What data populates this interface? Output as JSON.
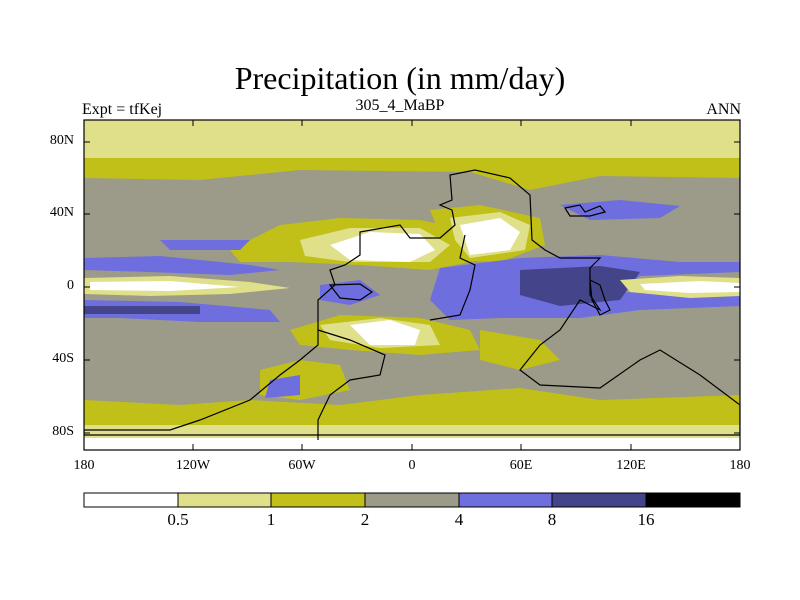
{
  "title": "Precipitation (in mm/day)",
  "left_label": "Expt = tfKej",
  "center_label": "305_4_MaBP",
  "right_label": "ANN",
  "colors": {
    "level0": "#ffffff",
    "level1": "#e0e08a",
    "level2": "#c0c018",
    "level3": "#9c9a88",
    "level4": "#6e6ede",
    "level5": "#44448a",
    "level6": "#000000"
  },
  "chart_data": {
    "type": "heatmap",
    "map_type": "filled contour of global annual precipitation",
    "xlim": [
      -180,
      180
    ],
    "ylim": [
      -90,
      90
    ],
    "x_ticks": [
      "180",
      "120W",
      "60W",
      "0",
      "60E",
      "120E",
      "180"
    ],
    "y_ticks": [
      "80N",
      "40N",
      "0",
      "40S",
      "80S"
    ],
    "colorbar": {
      "levels": [
        "0.5",
        "1",
        "2",
        "4",
        "8",
        "16"
      ],
      "colors": [
        "#ffffff",
        "#e0e08a",
        "#c0c018",
        "#9c9a88",
        "#6e6ede",
        "#44448a",
        "#000000"
      ]
    }
  }
}
